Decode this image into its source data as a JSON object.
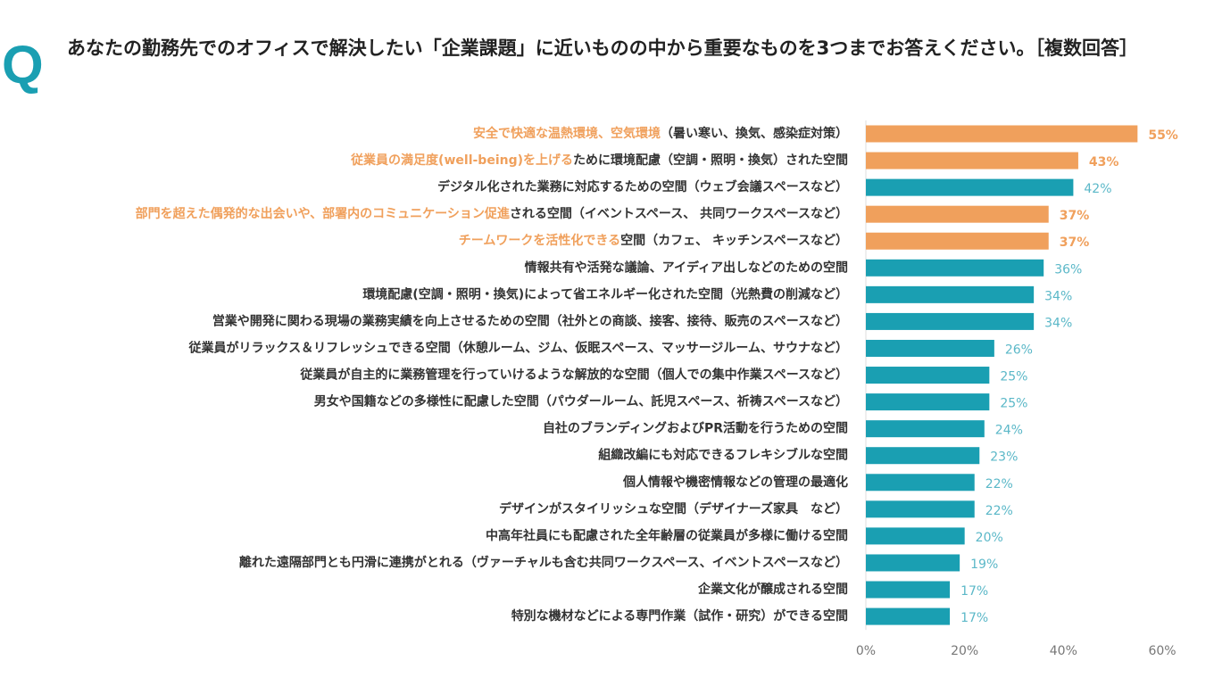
{
  "header": {
    "mark": "Q",
    "title": "あなたの勤務先でのオフィスで解決したい「企業課題」に近いものの中から重要なものを3つまでお答えください。［複数回答］"
  },
  "chart_data": {
    "type": "barh",
    "categories": [
      [
        "安全で快適な温熱環境、空気環境",
        "（暑い寒い、換気、感染症対策）"
      ],
      [
        "従業員の満足度(well-being)を上げる",
        "ために環境配慮（空調・照明・換気）された空間"
      ],
      [
        "デジタル化された業務に対応するための空間（ウェブ会議スペースなど）"
      ],
      [
        "部門を超えた偶発的な出会いや、部署内のコミュニケーション促進",
        "される空間（イベントスペース、 共同ワークスペースなど）"
      ],
      [
        "チームワークを活性化できる",
        "空間（カフェ、 キッチンスペースなど）"
      ],
      [
        "情報共有や活発な議論、アイディア出しなどのための空間"
      ],
      [
        "環境配慮(空調・照明・換気)によって省エネルギー化された空間（光熱費の削減など）"
      ],
      [
        "営業や開発に関わる現場の業務実績を向上させるための空間（社外との商談、接客、接待、販売のスペースなど）"
      ],
      [
        "従業員がリラックス＆リフレッシュできる空間（休憩ルーム、ジム、仮眠スペース、マッサージルーム、サウナなど）"
      ],
      [
        "従業員が自主的に業務管理を行っていけるような解放的な空間（個人での集中作業スペースなど）"
      ],
      [
        "男女や国籍などの多様性に配慮した空間（パウダールーム、託児スペース、祈祷スペースなど）"
      ],
      [
        "自社のブランディングおよびPR活動を行うための空間"
      ],
      [
        "組織改編にも対応できるフレキシブルな空間"
      ],
      [
        "個人情報や機密情報などの管理の最適化"
      ],
      [
        "デザインがスタイリッシュな空間（デザイナーズ家具　など）"
      ],
      [
        "中高年社員にも配慮された全年齢層の従業員が多様に働ける空間"
      ],
      [
        "離れた遠隔部門とも円滑に連携がとれる（ヴァーチャルも含む共同ワークスペース、イベントスペースなど）"
      ],
      [
        "企業文化が醸成される空間"
      ],
      [
        "特別な機材などによる専門作業（試作・研究）ができる空間"
      ]
    ],
    "values": [
      55,
      43,
      42,
      37,
      37,
      36,
      34,
      34,
      26,
      25,
      25,
      24,
      23,
      22,
      22,
      20,
      19,
      17,
      17
    ],
    "value_labels": [
      "55%",
      "43%",
      "42%",
      "37%",
      "37%",
      "36%",
      "34%",
      "34%",
      "26%",
      "25%",
      "25%",
      "24%",
      "23%",
      "22%",
      "22%",
      "20%",
      "19%",
      "17%",
      "17%"
    ],
    "highlight": [
      true,
      true,
      false,
      true,
      true,
      false,
      false,
      false,
      false,
      false,
      false,
      false,
      false,
      false,
      false,
      false,
      false,
      false,
      false
    ],
    "color": "#1a9fb2",
    "highlight_color": "#f0a05c",
    "xlim": [
      0,
      60
    ],
    "xticks": [
      {
        "value": 0,
        "label": "0%"
      },
      {
        "value": 20,
        "label": "20%"
      },
      {
        "value": 40,
        "label": "40%"
      },
      {
        "value": 60,
        "label": "60%"
      }
    ]
  }
}
